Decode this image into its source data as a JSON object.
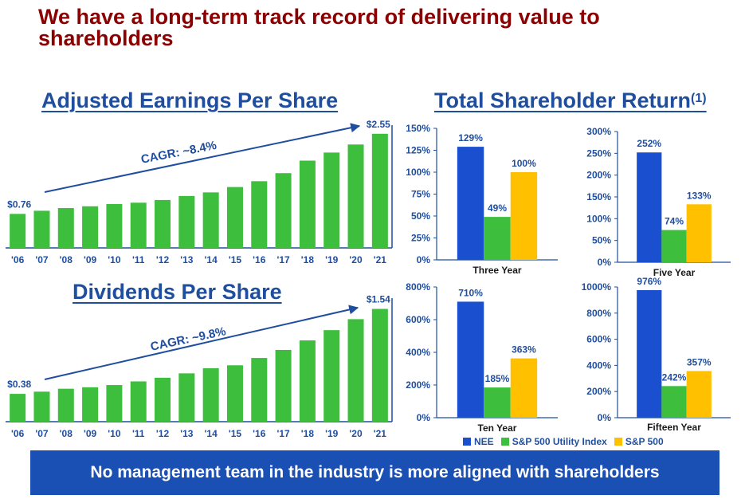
{
  "title": "We have a long-term track record of delivering value to shareholders",
  "headings": {
    "eps": "Adjusted Earnings Per Share",
    "dps": "Dividends Per Share",
    "tsr": "Total Shareholder Return",
    "tsr_note": "(1)"
  },
  "banner": "No management team in the industry is more aligned with shareholders",
  "legend": [
    {
      "name": "NEE",
      "color": "#1A4FD0"
    },
    {
      "name": "S&P 500 Utility Index",
      "color": "#3DBF3D"
    },
    {
      "name": "S&P 500",
      "color": "#FFC000"
    }
  ],
  "colors": {
    "bar": "#3DBF3D",
    "arrow": "#1F4E9E",
    "axis": "#1F4E9E"
  },
  "chart_data": [
    {
      "type": "bar",
      "title": "Adjusted Earnings Per Share",
      "categories": [
        "'06",
        "'07",
        "'08",
        "'09",
        "'10",
        "'11",
        "'12",
        "'13",
        "'14",
        "'15",
        "'16",
        "'17",
        "'18",
        "'19",
        "'20",
        "'21"
      ],
      "values": [
        0.76,
        0.83,
        0.89,
        0.93,
        0.98,
        1.01,
        1.07,
        1.16,
        1.24,
        1.36,
        1.49,
        1.67,
        1.95,
        2.13,
        2.31,
        2.55
      ],
      "first_label": "$0.76",
      "last_label": "$2.55",
      "annotation": "CAGR: ~8.4%",
      "ylim": [
        0,
        2.6
      ]
    },
    {
      "type": "bar",
      "title": "Dividends Per Share",
      "categories": [
        "'06",
        "'07",
        "'08",
        "'09",
        "'10",
        "'11",
        "'12",
        "'13",
        "'14",
        "'15",
        "'16",
        "'17",
        "'18",
        "'19",
        "'20",
        "'21"
      ],
      "values": [
        0.38,
        0.41,
        0.45,
        0.47,
        0.5,
        0.55,
        0.6,
        0.66,
        0.73,
        0.77,
        0.87,
        0.98,
        1.11,
        1.25,
        1.4,
        1.54
      ],
      "first_label": "$0.38",
      "last_label": "$1.54",
      "annotation": "CAGR: ~9.8%",
      "ylim": [
        0,
        1.6
      ]
    },
    {
      "type": "bar",
      "title": "Three Year",
      "series": [
        {
          "name": "NEE",
          "values": [
            129
          ]
        },
        {
          "name": "S&P 500 Utility Index",
          "values": [
            49
          ]
        },
        {
          "name": "S&P 500",
          "values": [
            100
          ]
        }
      ],
      "data_labels": [
        "129%",
        "49%",
        "100%"
      ],
      "yticks": [
        "0%",
        "25%",
        "50%",
        "75%",
        "100%",
        "125%",
        "150%"
      ],
      "ylim": [
        0,
        150
      ]
    },
    {
      "type": "bar",
      "title": "Five Year",
      "series": [
        {
          "name": "NEE",
          "values": [
            252
          ]
        },
        {
          "name": "S&P 500 Utility Index",
          "values": [
            74
          ]
        },
        {
          "name": "S&P 500",
          "values": [
            133
          ]
        }
      ],
      "data_labels": [
        "252%",
        "74%",
        "133%"
      ],
      "yticks": [
        "0%",
        "50%",
        "100%",
        "150%",
        "200%",
        "250%",
        "300%"
      ],
      "ylim": [
        0,
        300
      ]
    },
    {
      "type": "bar",
      "title": "Ten Year",
      "series": [
        {
          "name": "NEE",
          "values": [
            710
          ]
        },
        {
          "name": "S&P 500 Utility Index",
          "values": [
            185
          ]
        },
        {
          "name": "S&P 500",
          "values": [
            363
          ]
        }
      ],
      "data_labels": [
        "710%",
        "185%",
        "363%"
      ],
      "yticks": [
        "0%",
        "200%",
        "400%",
        "600%",
        "800%"
      ],
      "ylim": [
        0,
        800
      ]
    },
    {
      "type": "bar",
      "title": "Fifteen Year",
      "series": [
        {
          "name": "NEE",
          "values": [
            976
          ]
        },
        {
          "name": "S&P 500 Utility Index",
          "values": [
            242
          ]
        },
        {
          "name": "S&P 500",
          "values": [
            357
          ]
        }
      ],
      "data_labels": [
        "976%",
        "242%",
        "357%"
      ],
      "yticks": [
        "0%",
        "200%",
        "400%",
        "600%",
        "800%",
        "1000%"
      ],
      "ylim": [
        0,
        1000
      ]
    }
  ]
}
